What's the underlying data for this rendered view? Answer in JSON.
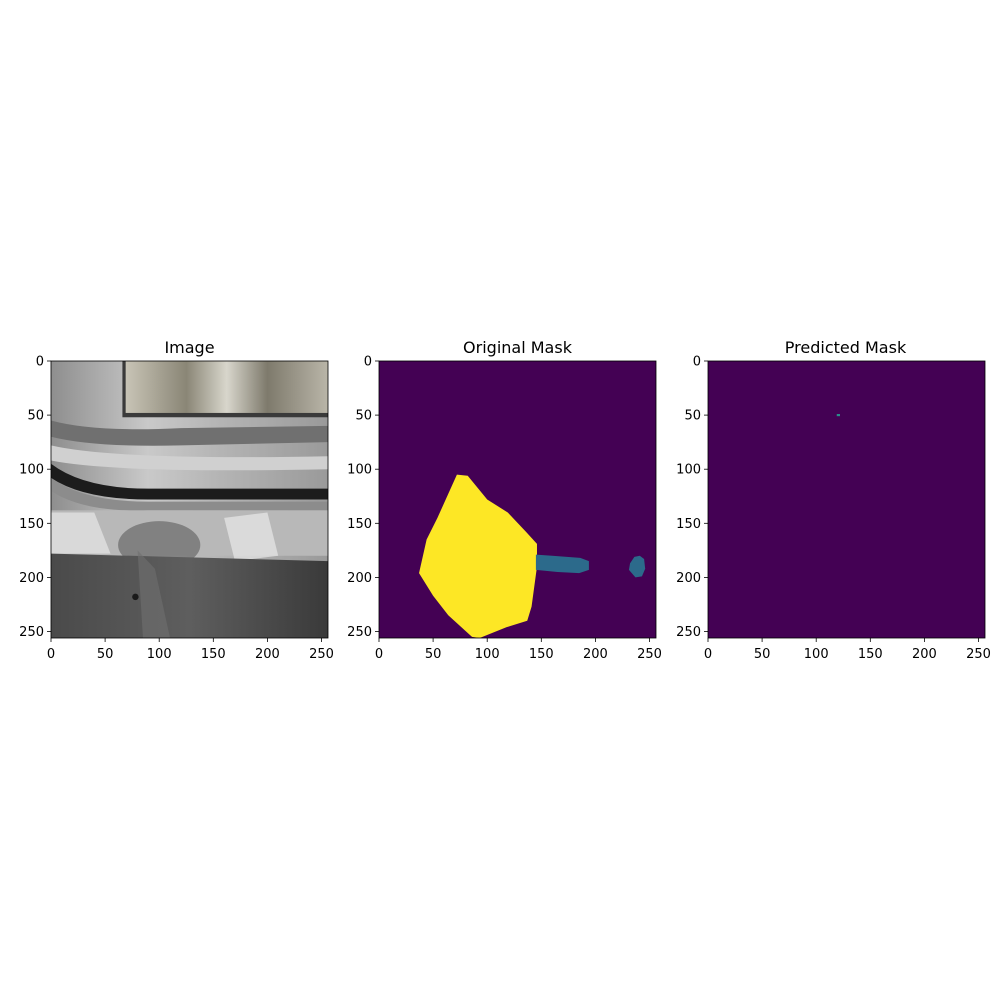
{
  "panels": [
    {
      "title": "Image",
      "kind": "photo",
      "xticks": [
        0,
        50,
        100,
        150,
        200,
        250
      ],
      "yticks": [
        0,
        50,
        100,
        150,
        200,
        250
      ],
      "extent": 256
    },
    {
      "title": "Original Mask",
      "kind": "mask",
      "xticks": [
        0,
        50,
        100,
        150,
        200,
        250
      ],
      "yticks": [
        0,
        50,
        100,
        150,
        200,
        250
      ],
      "extent": 256,
      "background_color": "#440154",
      "regions": [
        {
          "color": "#fde725",
          "points": [
            [
              37,
              196
            ],
            [
              44,
              165
            ],
            [
              54,
              145
            ],
            [
              72,
              105
            ],
            [
              82,
              106
            ],
            [
              100,
              128
            ],
            [
              119,
              140
            ],
            [
              136,
              158
            ],
            [
              146,
              169
            ],
            [
              146,
              190
            ],
            [
              141,
              227
            ],
            [
              137,
              240
            ],
            [
              118,
              246
            ],
            [
              93,
              256
            ],
            [
              86,
              255
            ],
            [
              64,
              235
            ],
            [
              50,
              217
            ]
          ]
        },
        {
          "color": "#2c6a8b",
          "points": [
            [
              145,
              179
            ],
            [
              160,
              180
            ],
            [
              186,
              182
            ],
            [
              194,
              185
            ],
            [
              194,
              193
            ],
            [
              185,
              196
            ],
            [
              165,
              195
            ],
            [
              145,
              193
            ]
          ]
        },
        {
          "color": "#2c6a8b",
          "points": [
            [
              232,
              187
            ],
            [
              236,
              181
            ],
            [
              241,
              180
            ],
            [
              245,
              183
            ],
            [
              246,
              192
            ],
            [
              243,
              199
            ],
            [
              237,
              200
            ],
            [
              231,
              193
            ]
          ]
        }
      ]
    },
    {
      "title": "Predicted Mask",
      "kind": "mask",
      "xticks": [
        0,
        50,
        100,
        150,
        200,
        250
      ],
      "yticks": [
        0,
        50,
        100,
        150,
        200,
        250
      ],
      "extent": 256,
      "background_color": "#440154",
      "regions": [
        {
          "color": "#2c8d8b",
          "points": [
            [
              119,
              49
            ],
            [
              122,
              49
            ],
            [
              122,
              51
            ],
            [
              119,
              51
            ]
          ]
        }
      ]
    }
  ]
}
